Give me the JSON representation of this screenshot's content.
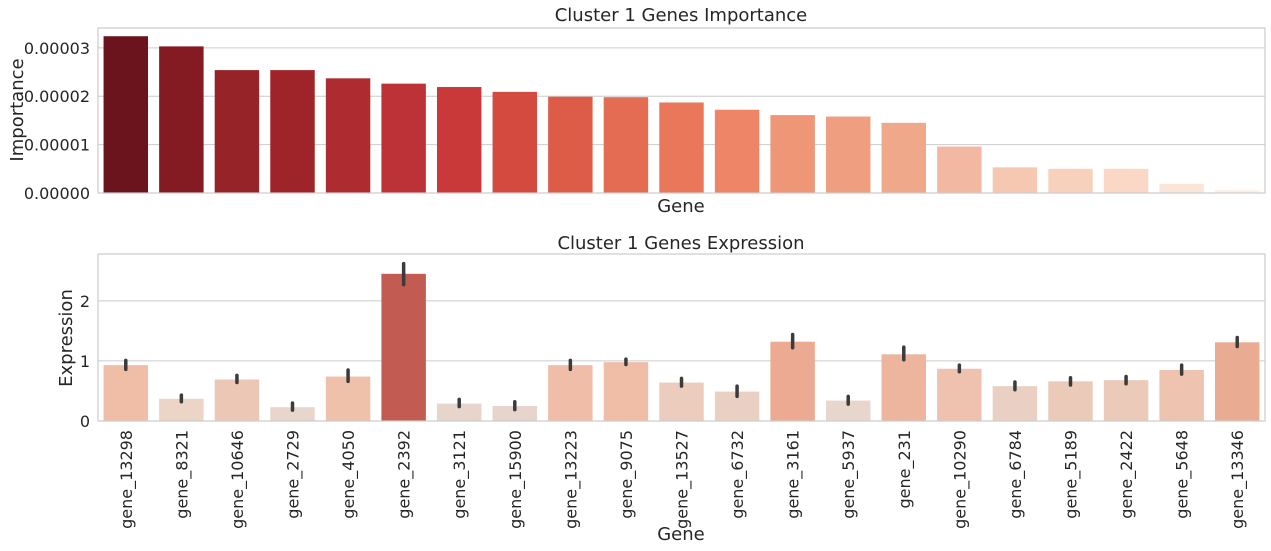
{
  "chart_data": [
    {
      "type": "bar",
      "title": "Cluster 1 Genes Importance",
      "xlabel": "Gene",
      "ylabel": "Importance",
      "ylim": [
        0,
        3.41e-05
      ],
      "yticks": [
        "0.00000",
        "0.00001",
        "0.00002",
        "0.00003"
      ],
      "ytick_values": [
        0,
        1e-05,
        2e-05,
        3e-05
      ],
      "show_xticklabels": false,
      "grid": "horizontal",
      "categories": [
        "gene_13298",
        "gene_8321",
        "gene_10646",
        "gene_2729",
        "gene_4050",
        "gene_2392",
        "gene_3121",
        "gene_15900",
        "gene_13223",
        "gene_9075",
        "gene_13527",
        "gene_6732",
        "gene_3161",
        "gene_5937",
        "gene_231",
        "gene_10290",
        "gene_6784",
        "gene_5189",
        "gene_2422",
        "gene_5648",
        "gene_13346"
      ],
      "values": [
        3.24e-05,
        3.03e-05,
        2.54e-05,
        2.54e-05,
        2.37e-05,
        2.26e-05,
        2.19e-05,
        2.09e-05,
        1.99e-05,
        1.98e-05,
        1.87e-05,
        1.72e-05,
        1.61e-05,
        1.58e-05,
        1.45e-05,
        9.6e-06,
        5.3e-06,
        5e-06,
        5e-06,
        1.9e-06,
        6e-07
      ],
      "colors": [
        "#6b141d",
        "#841b23",
        "#962328",
        "#9f2429",
        "#ae2b2f",
        "#bd3236",
        "#c9393a",
        "#d44a3e",
        "#dd5c48",
        "#e36c52",
        "#ea7759",
        "#ed8566",
        "#ee9676",
        "#ef9e7f",
        "#f0a88b",
        "#f3b8a1",
        "#f6c7b1",
        "#f8d1bc",
        "#fad8c5",
        "#fbe5d7",
        "#fdf0e7"
      ]
    },
    {
      "type": "bar",
      "title": "Cluster 1 Genes Expression",
      "xlabel": "Gene",
      "ylabel": "Expression",
      "ylim": [
        0,
        2.78
      ],
      "yticks": [
        "0",
        "1",
        "2"
      ],
      "ytick_values": [
        0,
        1,
        2
      ],
      "grid": "horizontal",
      "categories": [
        "gene_13298",
        "gene_8321",
        "gene_10646",
        "gene_2729",
        "gene_4050",
        "gene_2392",
        "gene_3121",
        "gene_15900",
        "gene_13223",
        "gene_9075",
        "gene_13527",
        "gene_6732",
        "gene_3161",
        "gene_5937",
        "gene_231",
        "gene_10290",
        "gene_6784",
        "gene_5189",
        "gene_2422",
        "gene_5648",
        "gene_13346"
      ],
      "values": [
        0.93,
        0.37,
        0.69,
        0.23,
        0.74,
        2.45,
        0.29,
        0.25,
        0.93,
        0.98,
        0.64,
        0.49,
        1.32,
        0.34,
        1.11,
        0.87,
        0.58,
        0.66,
        0.68,
        0.85,
        1.31
      ],
      "err_low": [
        0.86,
        0.32,
        0.64,
        0.18,
        0.66,
        2.27,
        0.24,
        0.19,
        0.86,
        0.94,
        0.58,
        0.41,
        1.22,
        0.28,
        1.02,
        0.82,
        0.52,
        0.6,
        0.62,
        0.78,
        1.24
      ],
      "err_high": [
        1.01,
        0.43,
        0.76,
        0.3,
        0.85,
        2.62,
        0.36,
        0.32,
        1.01,
        1.03,
        0.71,
        0.58,
        1.44,
        0.41,
        1.23,
        0.93,
        0.65,
        0.72,
        0.74,
        0.93,
        1.39
      ],
      "colors": [
        "#f0bda7",
        "#ecd4c6",
        "#ecc7b6",
        "#e8d6cc",
        "#efc1aa",
        "#c25b52",
        "#e7d5cc",
        "#e7d4cc",
        "#f0bea8",
        "#f0bda7",
        "#ecccbd",
        "#ead0c2",
        "#ebaa91",
        "#e8d5cc",
        "#eeb59e",
        "#eec2af",
        "#ead0c3",
        "#eccab9",
        "#eccab9",
        "#eec3b0",
        "#e9ab91"
      ]
    }
  ]
}
